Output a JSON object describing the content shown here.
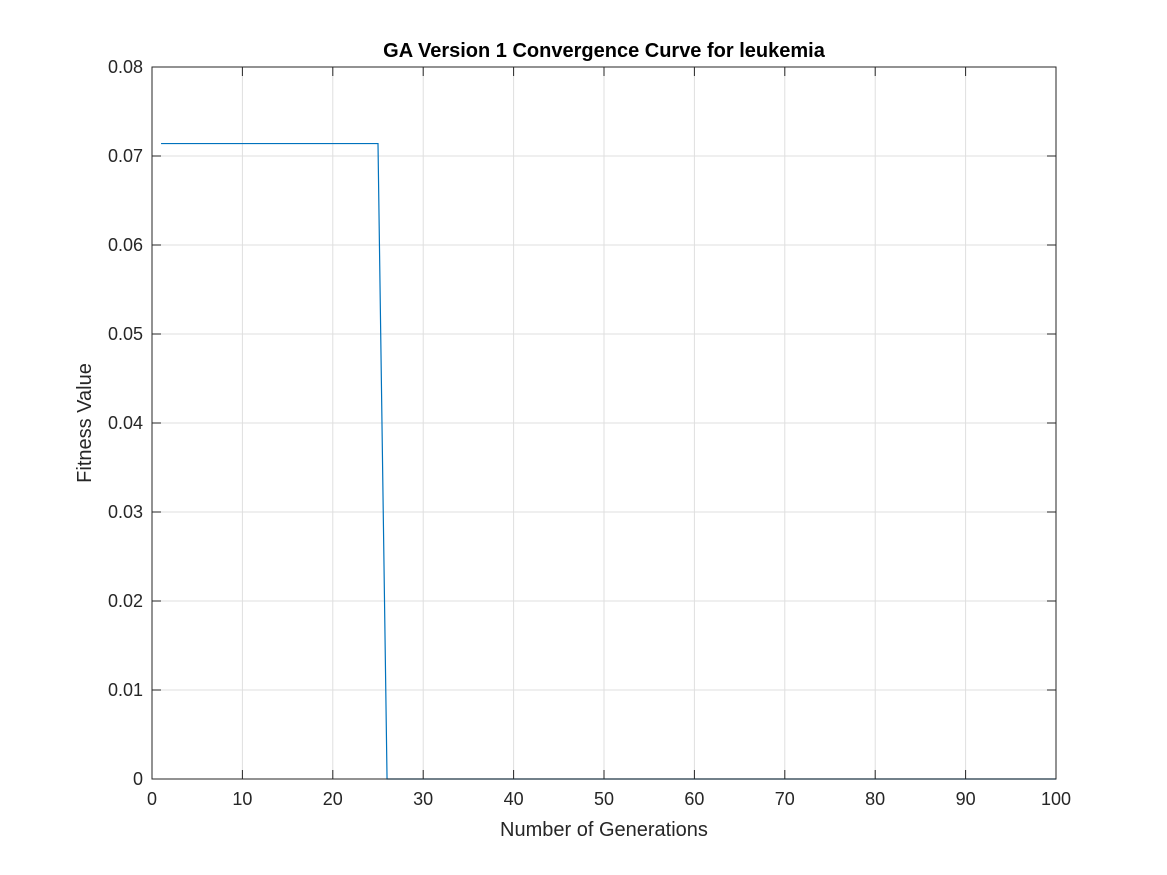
{
  "chart_data": {
    "type": "line",
    "title": "GA Version 1 Convergence Curve for leukemia",
    "xlabel": "Number of Generations",
    "ylabel": "Fitness Value",
    "xlim": [
      0,
      100
    ],
    "ylim": [
      0,
      0.08
    ],
    "xticks": [
      0,
      10,
      20,
      30,
      40,
      50,
      60,
      70,
      80,
      90,
      100
    ],
    "xtick_labels": [
      "0",
      "10",
      "20",
      "30",
      "40",
      "50",
      "60",
      "70",
      "80",
      "90",
      "100"
    ],
    "yticks": [
      0,
      0.01,
      0.02,
      0.03,
      0.04,
      0.05,
      0.06,
      0.07,
      0.08
    ],
    "ytick_labels": [
      "0",
      "0.01",
      "0.02",
      "0.03",
      "0.04",
      "0.05",
      "0.06",
      "0.07",
      "0.08"
    ],
    "grid": true,
    "series": [
      {
        "color": "#0072BD",
        "x": [
          1,
          25,
          26,
          100
        ],
        "y": [
          0.0714,
          0.0714,
          0,
          0
        ]
      }
    ]
  }
}
